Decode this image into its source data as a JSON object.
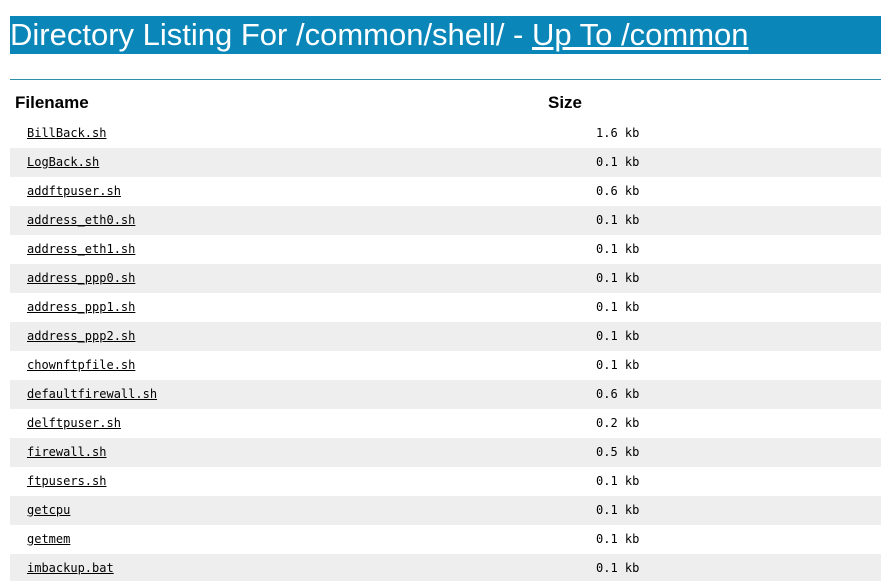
{
  "header": {
    "title_prefix": "Directory Listing For /common/shell/ - ",
    "up_link_label": "Up To /common",
    "bar_color": "#0a87b8"
  },
  "columns": {
    "filename": "Filename",
    "size": "Size"
  },
  "files": [
    {
      "name": "BillBack.sh",
      "size": "1.6 kb"
    },
    {
      "name": "LogBack.sh",
      "size": "0.1 kb"
    },
    {
      "name": "addftpuser.sh",
      "size": "0.6 kb"
    },
    {
      "name": "address_eth0.sh",
      "size": "0.1 kb"
    },
    {
      "name": "address_eth1.sh",
      "size": "0.1 kb"
    },
    {
      "name": "address_ppp0.sh",
      "size": "0.1 kb"
    },
    {
      "name": "address_ppp1.sh",
      "size": "0.1 kb"
    },
    {
      "name": "address_ppp2.sh",
      "size": "0.1 kb"
    },
    {
      "name": "chownftpfile.sh",
      "size": "0.1 kb"
    },
    {
      "name": "defaultfirewall.sh",
      "size": "0.6 kb"
    },
    {
      "name": "delftpuser.sh",
      "size": "0.2 kb"
    },
    {
      "name": "firewall.sh",
      "size": "0.5 kb"
    },
    {
      "name": "ftpusers.sh",
      "size": "0.1 kb"
    },
    {
      "name": "getcpu",
      "size": "0.1 kb"
    },
    {
      "name": "getmem",
      "size": "0.1 kb"
    },
    {
      "name": "imbackup.bat",
      "size": "0.1 kb"
    }
  ]
}
